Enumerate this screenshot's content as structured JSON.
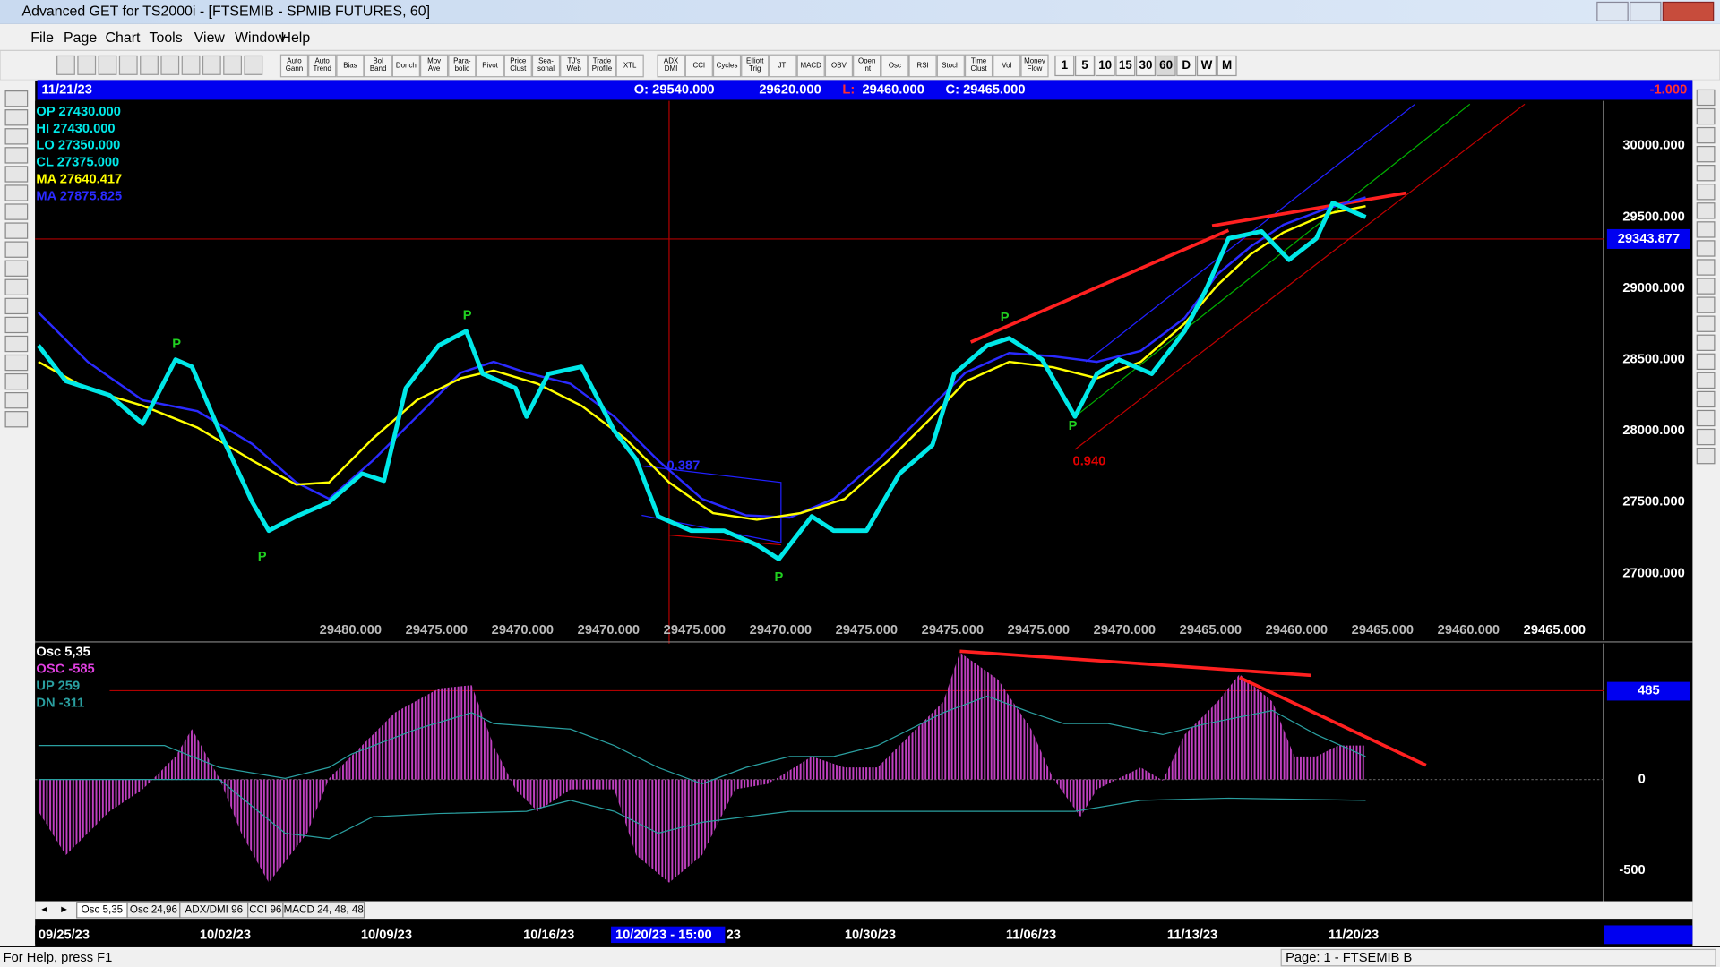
{
  "title_bar": "Advanced GET for TS2000i - [FTSEMIB - SPMIB FUTURES, 60]",
  "menu": [
    "File",
    "Page",
    "Chart",
    "Tools",
    "View",
    "Window",
    "Help"
  ],
  "toolbar": [
    [
      "Auto",
      "Gann"
    ],
    [
      "Auto",
      "Trend"
    ],
    [
      "Bias"
    ],
    [
      "Bol",
      "Band"
    ],
    [
      "Donch"
    ],
    [
      "Mov",
      "Ave"
    ],
    [
      "Para-",
      "bolic"
    ],
    [
      "Pivot"
    ],
    [
      "Price",
      "Clust"
    ],
    [
      "Sea-",
      "sonal"
    ],
    [
      "TJ's",
      "Web"
    ],
    [
      "Trade",
      "Profile"
    ],
    [
      "XTL"
    ],
    [
      "ADX",
      "DMI"
    ],
    [
      "CCI"
    ],
    [
      "Cycles"
    ],
    [
      "Elliott",
      "Trig"
    ],
    [
      "JTI"
    ],
    [
      "MACD"
    ],
    [
      "OBV"
    ],
    [
      "Open",
      "Int"
    ],
    [
      "Osc"
    ],
    [
      "RSI"
    ],
    [
      "Stoch"
    ],
    [
      "Time",
      "Clust"
    ],
    [
      "Vol"
    ],
    [
      "Money",
      "Flow"
    ]
  ],
  "timeframes": [
    "1",
    "5",
    "10",
    "15",
    "30",
    "60",
    "D",
    "W",
    "M"
  ],
  "info_bar": {
    "date": "11/21/23",
    "open": "O: 29540.000",
    "high": "29620.000",
    "low_label": "L:",
    "low": "29460.000",
    "close": "C: 29465.000",
    "change": "-1.000"
  },
  "legend": [
    {
      "text": "OP 27430.000",
      "color": "#00e8e8"
    },
    {
      "text": "HI  27430.000",
      "color": "#00e8e8"
    },
    {
      "text": "LO  27350.000",
      "color": "#00e8e8"
    },
    {
      "text": "CL  27375.000",
      "color": "#00e8e8"
    },
    {
      "text": "MA  27640.417",
      "color": "#ffff00"
    },
    {
      "text": "MA  27875.825",
      "color": "#2a2aff"
    }
  ],
  "price_axis": [
    "30000.000",
    "29500.000",
    "29000.000",
    "28500.000",
    "28000.000",
    "27500.000",
    "27000.000"
  ],
  "cursor_price": "29343.877",
  "price_row": [
    "29480.000",
    "29475.000",
    "29470.000",
    "29470.000",
    "29475.000",
    "29470.000",
    "29475.000",
    "29475.000",
    "29475.000",
    "29470.000",
    "29465.000",
    "29460.000",
    "29465.000",
    "29460.000",
    "29465.000"
  ],
  "pivots": [
    "P",
    "P",
    "P",
    "P",
    "P",
    "P"
  ],
  "annotations": [
    "0.940",
    "0.387"
  ],
  "osc_legend": [
    "Osc 5,35",
    "OSC -585",
    "UP   259",
    "DN   -311"
  ],
  "osc_axis": [
    "485",
    "0",
    "-500"
  ],
  "tabs": [
    "Osc 5,35",
    "Osc 24,96",
    "ADX/DMI 96",
    "CCI 96",
    "MACD 24, 48, 48"
  ],
  "dates": [
    "09/25/23",
    "10/02/23",
    "10/09/23",
    "10/16/23",
    "10/20/23 - 15:00",
    "23",
    "10/30/23",
    "11/06/23",
    "11/13/23",
    "11/20/23"
  ],
  "status": {
    "help": "For Help, press F1",
    "page": "Page: 1 - FTSEMIB B"
  }
}
